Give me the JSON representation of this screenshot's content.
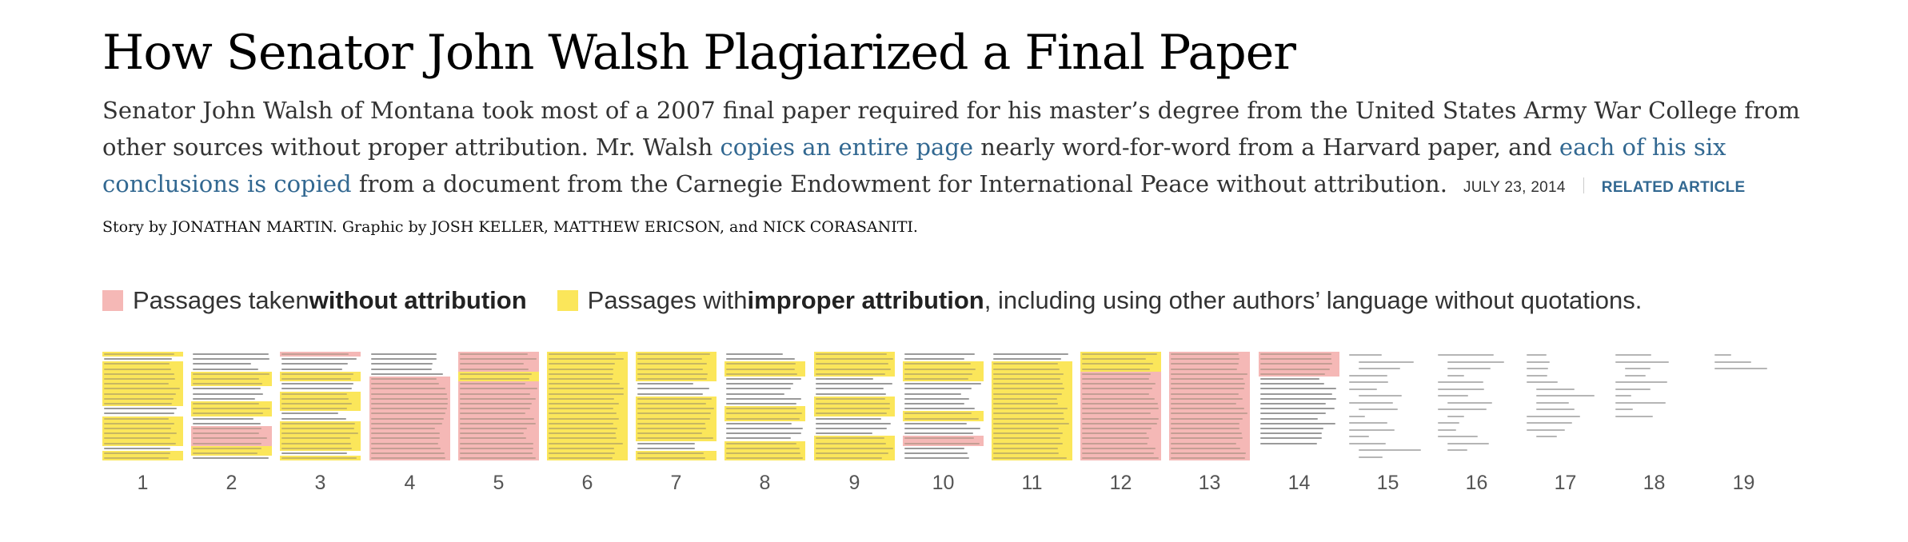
{
  "headline": "How Senator John Walsh Plagiarized a Final Paper",
  "summary": {
    "part1": "Senator John Walsh of Montana took most of a 2007 final paper required for his master’s degree from the United States Army War College from other sources without proper attribution. Mr. Walsh ",
    "link1": "copies an entire page",
    "part2": " nearly word-for-word from a Harvard paper, and ",
    "link2": "each of his six conclusions is copied",
    "part3": " from a document from the Carnegie Endowment for International Peace without attribution.",
    "date": "JULY 23, 2014",
    "related": "RELATED ARTICLE"
  },
  "byline": {
    "story_prefix": "Story by ",
    "story_author": "JONATHAN MARTIN",
    "graphic_prefix": ". Graphic by ",
    "graphic_authors": "JOSH KELLER, MATTHEW ERICSON, ",
    "and": "and ",
    "last_author": "NICK CORASANITI",
    "end": "."
  },
  "legend": {
    "without_prefix": "Passages taken ",
    "without_bold": "without attribution",
    "improper_prefix": "Passages with ",
    "improper_bold": "improper attribution",
    "improper_suffix": ", including using other authors’ language without quotations."
  },
  "colors": {
    "without": "#f5b8b6",
    "improper": "#fbe65a",
    "plain": "#9a9a9a",
    "link": "#326891"
  },
  "pages": [
    {
      "number": "1",
      "segments": [
        [
          "y",
          1
        ],
        [
          "t",
          1
        ],
        [
          "y",
          9
        ],
        [
          "t",
          2
        ],
        [
          "y",
          6
        ],
        [
          "t",
          1
        ],
        [
          "y",
          5
        ]
      ]
    },
    {
      "number": "2",
      "segments": [
        [
          "t",
          4
        ],
        [
          "y",
          3
        ],
        [
          "t",
          3
        ],
        [
          "y",
          3
        ],
        [
          "t",
          2
        ],
        [
          "p",
          4
        ],
        [
          "y",
          2
        ],
        [
          "t",
          1
        ],
        [
          "y",
          2
        ]
      ]
    },
    {
      "number": "3",
      "segments": [
        [
          "p",
          1
        ],
        [
          "t",
          3
        ],
        [
          "y",
          2
        ],
        [
          "t",
          2
        ],
        [
          "y",
          4
        ],
        [
          "t",
          2
        ],
        [
          "y",
          6
        ],
        [
          "t",
          1
        ],
        [
          "y",
          2
        ],
        [
          "t",
          1
        ]
      ]
    },
    {
      "number": "4",
      "segments": [
        [
          "t",
          5
        ],
        [
          "p",
          17
        ]
      ]
    },
    {
      "number": "5",
      "segments": [
        [
          "p",
          4
        ],
        [
          "y",
          2
        ],
        [
          "p",
          16
        ]
      ]
    },
    {
      "number": "6",
      "segments": [
        [
          "y",
          22
        ]
      ]
    },
    {
      "number": "7",
      "segments": [
        [
          "y",
          6
        ],
        [
          "t",
          3
        ],
        [
          "y",
          9
        ],
        [
          "t",
          2
        ],
        [
          "y",
          2
        ]
      ]
    },
    {
      "number": "8",
      "segments": [
        [
          "t",
          2
        ],
        [
          "y",
          3
        ],
        [
          "t",
          6
        ],
        [
          "y",
          3
        ],
        [
          "t",
          4
        ],
        [
          "y",
          4
        ]
      ]
    },
    {
      "number": "9",
      "segments": [
        [
          "y",
          5
        ],
        [
          "t",
          4
        ],
        [
          "y",
          4
        ],
        [
          "t",
          4
        ],
        [
          "y",
          5
        ]
      ]
    },
    {
      "number": "10",
      "segments": [
        [
          "t",
          2
        ],
        [
          "y",
          4
        ],
        [
          "t",
          6
        ],
        [
          "y",
          2
        ],
        [
          "t",
          3
        ],
        [
          "p",
          2
        ],
        [
          "t",
          3
        ]
      ]
    },
    {
      "number": "11",
      "segments": [
        [
          "t",
          2
        ],
        [
          "y",
          20
        ]
      ]
    },
    {
      "number": "12",
      "segments": [
        [
          "y",
          4
        ],
        [
          "p",
          18
        ]
      ]
    },
    {
      "number": "13",
      "segments": [
        [
          "p",
          22
        ]
      ]
    },
    {
      "number": "14",
      "segments": [
        [
          "p",
          5
        ],
        [
          "t",
          14
        ]
      ]
    },
    {
      "number": "15",
      "segments": [
        [
          "s",
          16
        ]
      ]
    },
    {
      "number": "16",
      "segments": [
        [
          "s",
          15
        ]
      ]
    },
    {
      "number": "17",
      "segments": [
        [
          "s",
          13
        ]
      ]
    },
    {
      "number": "18",
      "segments": [
        [
          "s",
          10
        ]
      ]
    },
    {
      "number": "19",
      "segments": [
        [
          "s",
          3
        ]
      ]
    }
  ]
}
